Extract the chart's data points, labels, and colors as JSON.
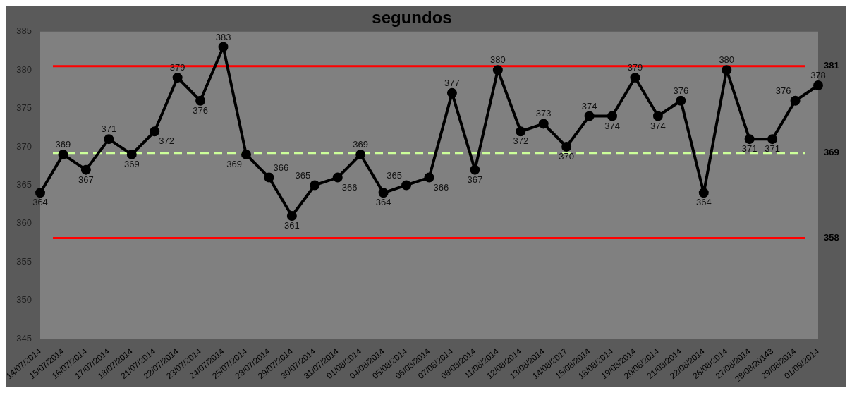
{
  "chart_data": {
    "type": "line",
    "title": "segundos",
    "categories": [
      "14/07/2014",
      "15/07/2014",
      "16/07/2014",
      "17/07/2014",
      "18/07/2014",
      "21/07/2014",
      "22/07/2014",
      "23/07/2014",
      "24/07/2014",
      "25/07/2014",
      "28/07/2014",
      "29/07/2014",
      "30/07/2014",
      "31/07/2014",
      "01/08/2014",
      "04/08/2014",
      "05/08/2014",
      "06/08/2014",
      "07/08/2014",
      "08/08/2014",
      "11/08/2014",
      "12/08/2014",
      "13/08/2014",
      "14/08/2017",
      "15/08/2014",
      "18/08/2014",
      "19/08/2014",
      "20/08/2014",
      "21/08/2014",
      "22/08/2014",
      "26/08/2014",
      "27/08/2014",
      "28/08/20143",
      "29/08/2014",
      "01/09/2014"
    ],
    "series": [
      {
        "color": "#000000",
        "values": [
          364,
          369,
          367,
          371,
          369,
          372,
          379,
          376,
          383,
          369,
          366,
          361,
          365,
          366,
          369,
          364,
          365,
          366,
          377,
          367,
          380,
          372,
          373,
          370,
          374,
          374,
          379,
          374,
          376,
          364,
          380,
          371,
          371,
          376,
          378
        ]
      }
    ],
    "ylim": [
      345,
      385
    ],
    "yticks": [
      345,
      350,
      355,
      360,
      365,
      370,
      375,
      380,
      385
    ],
    "grid": false,
    "legend": false,
    "marker": "circle",
    "line_style": "solid",
    "data_labels": true,
    "ref_lines": [
      {
        "axis": "y",
        "value": 380.5,
        "label": "381",
        "color": "#ff0000",
        "line_style": "solid"
      },
      {
        "axis": "y",
        "value": 369.2,
        "label": "369",
        "color": "#ccff99",
        "line_style": "dashed"
      },
      {
        "axis": "y",
        "value": 358.1,
        "label": "358",
        "color": "#ff0000",
        "line_style": "solid"
      }
    ]
  }
}
